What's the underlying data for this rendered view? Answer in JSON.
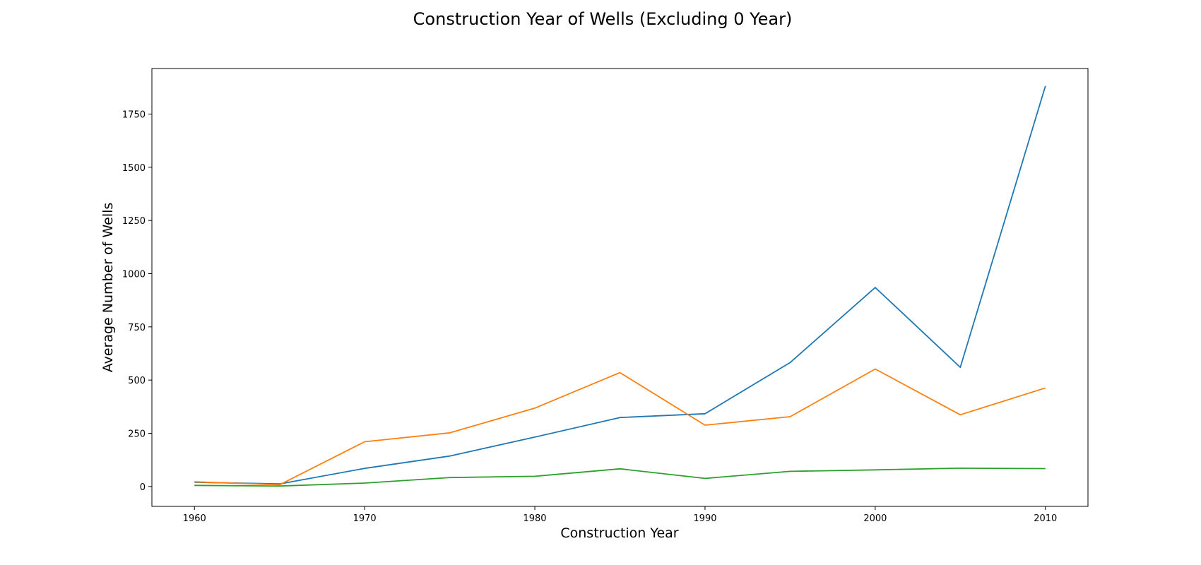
{
  "chart_data": {
    "type": "line",
    "title": "Construction Year of Wells (Excluding 0 Year)",
    "xlabel": "Construction Year",
    "ylabel": "Average Number of Wells",
    "x": [
      1960,
      1965,
      1970,
      1975,
      1980,
      1985,
      1990,
      1995,
      2000,
      2005,
      2010
    ],
    "xlim": [
      1957.5,
      2012.5
    ],
    "ylim": [
      -93.5,
      1964
    ],
    "xticks": [
      1960,
      1970,
      1980,
      1990,
      2000,
      2010
    ],
    "yticks": [
      0,
      250,
      500,
      750,
      1000,
      1250,
      1500,
      1750
    ],
    "grid": false,
    "series": [
      {
        "color": "#1f77b4",
        "values": [
          20,
          12,
          85,
          143,
          232,
          324,
          342,
          582,
          935,
          560,
          1882
        ]
      },
      {
        "color": "#ff7f0e",
        "values": [
          22,
          8,
          210,
          252,
          368,
          535,
          288,
          328,
          552,
          337,
          463
        ]
      },
      {
        "color": "#2ca02c",
        "values": [
          5,
          2,
          16,
          42,
          48,
          83,
          38,
          71,
          78,
          86,
          84
        ]
      }
    ]
  }
}
